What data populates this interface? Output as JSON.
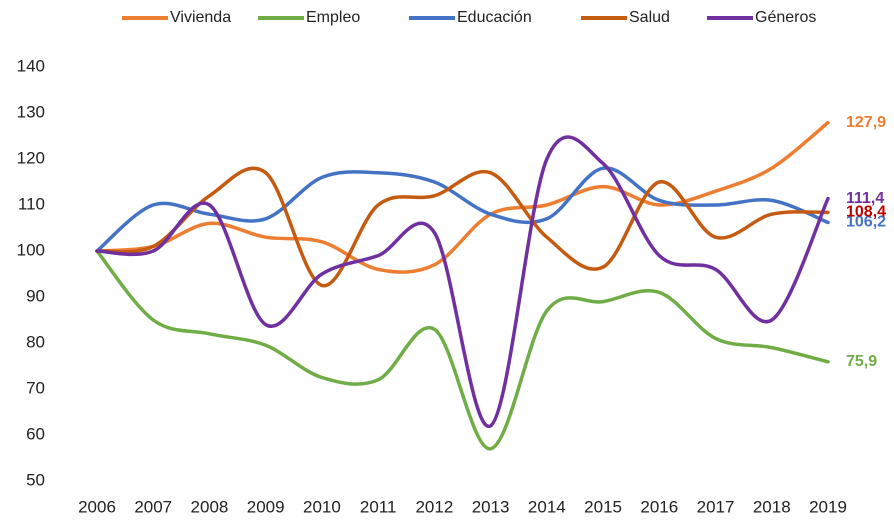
{
  "chart_data": {
    "type": "line",
    "smooth": true,
    "categories": [
      "2006",
      "2007",
      "2008",
      "2009",
      "2010",
      "2011",
      "2012",
      "2013",
      "2014",
      "2015",
      "2016",
      "2017",
      "2018",
      "2019"
    ],
    "ylim": [
      50,
      140
    ],
    "yticks": [
      50,
      60,
      70,
      80,
      90,
      100,
      110,
      120,
      130,
      140
    ],
    "grid": false,
    "legend": "top",
    "series": [
      {
        "name": "Vivienda",
        "color": "#ed7d31",
        "label_color": "#ed7d31",
        "values": [
          100,
          101,
          106,
          103,
          102,
          96,
          97,
          108,
          110,
          114,
          110,
          113,
          118,
          127.9
        ],
        "value_labels": [
          null,
          null,
          null,
          null,
          null,
          null,
          null,
          null,
          null,
          null,
          null,
          null,
          null,
          "127,9"
        ]
      },
      {
        "name": "Empleo",
        "color": "#70ad47",
        "label_color": "#70ad47",
        "values": [
          100,
          85,
          82,
          79.5,
          72.5,
          72,
          83,
          57,
          87,
          89,
          91,
          81,
          79,
          75.9
        ],
        "value_labels": [
          null,
          null,
          null,
          null,
          null,
          null,
          null,
          null,
          null,
          null,
          null,
          null,
          null,
          "75,9"
        ]
      },
      {
        "name": "Educación",
        "color": "#4472c4",
        "label_color": "#4472c4",
        "values": [
          100,
          110,
          108,
          107,
          116,
          117,
          115,
          108,
          107,
          118,
          111,
          110,
          111,
          106.2
        ],
        "value_labels": [
          null,
          null,
          null,
          null,
          null,
          null,
          null,
          null,
          null,
          null,
          null,
          null,
          null,
          "106,2"
        ]
      },
      {
        "name": "Salud",
        "color": "#c55a11",
        "label_color": "#c00000",
        "values": [
          100,
          101,
          112,
          117,
          92.5,
          110,
          112,
          117,
          103,
          96.5,
          115,
          103,
          108,
          108.4
        ],
        "value_labels": [
          null,
          null,
          null,
          null,
          null,
          null,
          null,
          null,
          null,
          null,
          null,
          null,
          null,
          "108,4"
        ]
      },
      {
        "name": "Géneros",
        "color": "#7030a0",
        "label_color": "#7030a0",
        "values": [
          100,
          100,
          110,
          84,
          95,
          99,
          104,
          62,
          120,
          119,
          99,
          96,
          85,
          111.4
        ],
        "value_labels": [
          null,
          null,
          null,
          null,
          null,
          null,
          null,
          null,
          null,
          null,
          null,
          null,
          null,
          "111,4"
        ]
      }
    ]
  }
}
